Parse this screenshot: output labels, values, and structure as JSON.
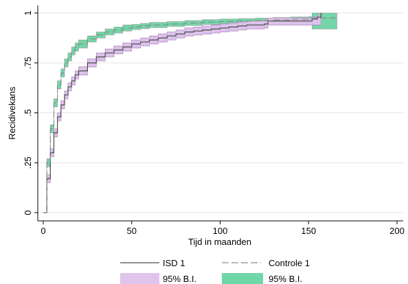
{
  "chart_data": {
    "type": "line",
    "title": "",
    "xlabel": "Tijd in maanden",
    "ylabel": "Recidivekans",
    "xlim": [
      0,
      200
    ],
    "ylim": [
      0,
      1
    ],
    "x_ticks": [
      0,
      50,
      100,
      150,
      200
    ],
    "x_tick_labels": [
      "0",
      "50",
      "100",
      "150",
      "200"
    ],
    "y_ticks": [
      0,
      0.25,
      0.5,
      0.75,
      1
    ],
    "y_tick_labels": [
      "0",
      ".25",
      ".5",
      ".75",
      "1"
    ],
    "grid": "horizontal",
    "legend_position": "bottom",
    "series": [
      {
        "name": "ISD 1",
        "style": "solid",
        "color": "#4a4a4a",
        "x": [
          0,
          2,
          4,
          6,
          8,
          10,
          12,
          14,
          16,
          18,
          20,
          25,
          30,
          35,
          40,
          45,
          50,
          55,
          60,
          65,
          70,
          75,
          80,
          85,
          90,
          95,
          100,
          105,
          110,
          115,
          120,
          125,
          127,
          130,
          135,
          140,
          145,
          150,
          152,
          155,
          157
        ],
        "y": [
          0.0,
          0.17,
          0.3,
          0.4,
          0.48,
          0.54,
          0.59,
          0.63,
          0.66,
          0.69,
          0.71,
          0.75,
          0.78,
          0.8,
          0.815,
          0.83,
          0.845,
          0.855,
          0.865,
          0.875,
          0.885,
          0.895,
          0.905,
          0.91,
          0.915,
          0.92,
          0.925,
          0.93,
          0.935,
          0.94,
          0.94,
          0.945,
          0.96,
          0.96,
          0.96,
          0.96,
          0.96,
          0.96,
          0.97,
          0.98,
          1.0
        ],
        "ci_lower": [
          0.0,
          0.15,
          0.28,
          0.38,
          0.46,
          0.52,
          0.57,
          0.61,
          0.64,
          0.67,
          0.69,
          0.73,
          0.76,
          0.78,
          0.795,
          0.81,
          0.825,
          0.835,
          0.845,
          0.855,
          0.865,
          0.875,
          0.885,
          0.89,
          0.895,
          0.9,
          0.905,
          0.91,
          0.915,
          0.92,
          0.92,
          0.925,
          0.94,
          0.94,
          0.94,
          0.94,
          0.94,
          0.94,
          0.94,
          0.94,
          0.94
        ],
        "ci_upper": [
          0.0,
          0.19,
          0.32,
          0.42,
          0.5,
          0.56,
          0.61,
          0.65,
          0.68,
          0.71,
          0.73,
          0.77,
          0.8,
          0.82,
          0.835,
          0.85,
          0.865,
          0.875,
          0.885,
          0.895,
          0.905,
          0.915,
          0.925,
          0.93,
          0.935,
          0.94,
          0.945,
          0.95,
          0.955,
          0.96,
          0.96,
          0.965,
          0.975,
          0.975,
          0.975,
          0.975,
          0.975,
          0.975,
          0.98,
          0.99,
          1.0
        ]
      },
      {
        "name": "Controle 1",
        "style": "dashed",
        "color": "#8a8a8a",
        "x": [
          0,
          2,
          4,
          6,
          8,
          10,
          12,
          14,
          16,
          18,
          20,
          25,
          30,
          35,
          40,
          45,
          50,
          55,
          60,
          70,
          80,
          90,
          100,
          110,
          120,
          130,
          140,
          150,
          152,
          160,
          166
        ],
        "y": [
          0.0,
          0.25,
          0.42,
          0.55,
          0.64,
          0.7,
          0.75,
          0.78,
          0.81,
          0.83,
          0.845,
          0.87,
          0.89,
          0.905,
          0.915,
          0.925,
          0.93,
          0.935,
          0.94,
          0.945,
          0.95,
          0.955,
          0.958,
          0.96,
          0.962,
          0.965,
          0.968,
          0.97,
          0.975,
          0.975,
          0.975
        ],
        "ci_lower": [
          0.0,
          0.23,
          0.4,
          0.53,
          0.62,
          0.68,
          0.73,
          0.76,
          0.79,
          0.81,
          0.825,
          0.855,
          0.875,
          0.89,
          0.9,
          0.91,
          0.917,
          0.922,
          0.927,
          0.933,
          0.938,
          0.943,
          0.946,
          0.948,
          0.95,
          0.953,
          0.956,
          0.958,
          0.92,
          0.92,
          0.92
        ],
        "ci_upper": [
          0.0,
          0.27,
          0.44,
          0.57,
          0.66,
          0.72,
          0.77,
          0.8,
          0.83,
          0.85,
          0.865,
          0.885,
          0.905,
          0.92,
          0.93,
          0.94,
          0.943,
          0.948,
          0.953,
          0.957,
          0.962,
          0.967,
          0.97,
          0.972,
          0.974,
          0.977,
          0.98,
          0.982,
          1.0,
          1.0,
          1.0
        ]
      }
    ],
    "legend": [
      {
        "label": "ISD 1",
        "kind": "line",
        "style": "solid",
        "color": "#4a4a4a"
      },
      {
        "label": "Controle 1",
        "kind": "line",
        "style": "dashed",
        "color": "#8a8a8a"
      },
      {
        "label": "95% B.I.",
        "kind": "band",
        "color": "#e0c4ec"
      },
      {
        "label": "95% B.I.",
        "kind": "band",
        "color": "#6fd6a8"
      }
    ],
    "colors": {
      "band_isd": "#dcc2ea",
      "band_isd_edge": "#b08bc4",
      "band_controle": "#72d6a8",
      "band_controle_edge": "#9aa6a0",
      "grid": "#e3e3e3",
      "axis": "#000000"
    }
  }
}
